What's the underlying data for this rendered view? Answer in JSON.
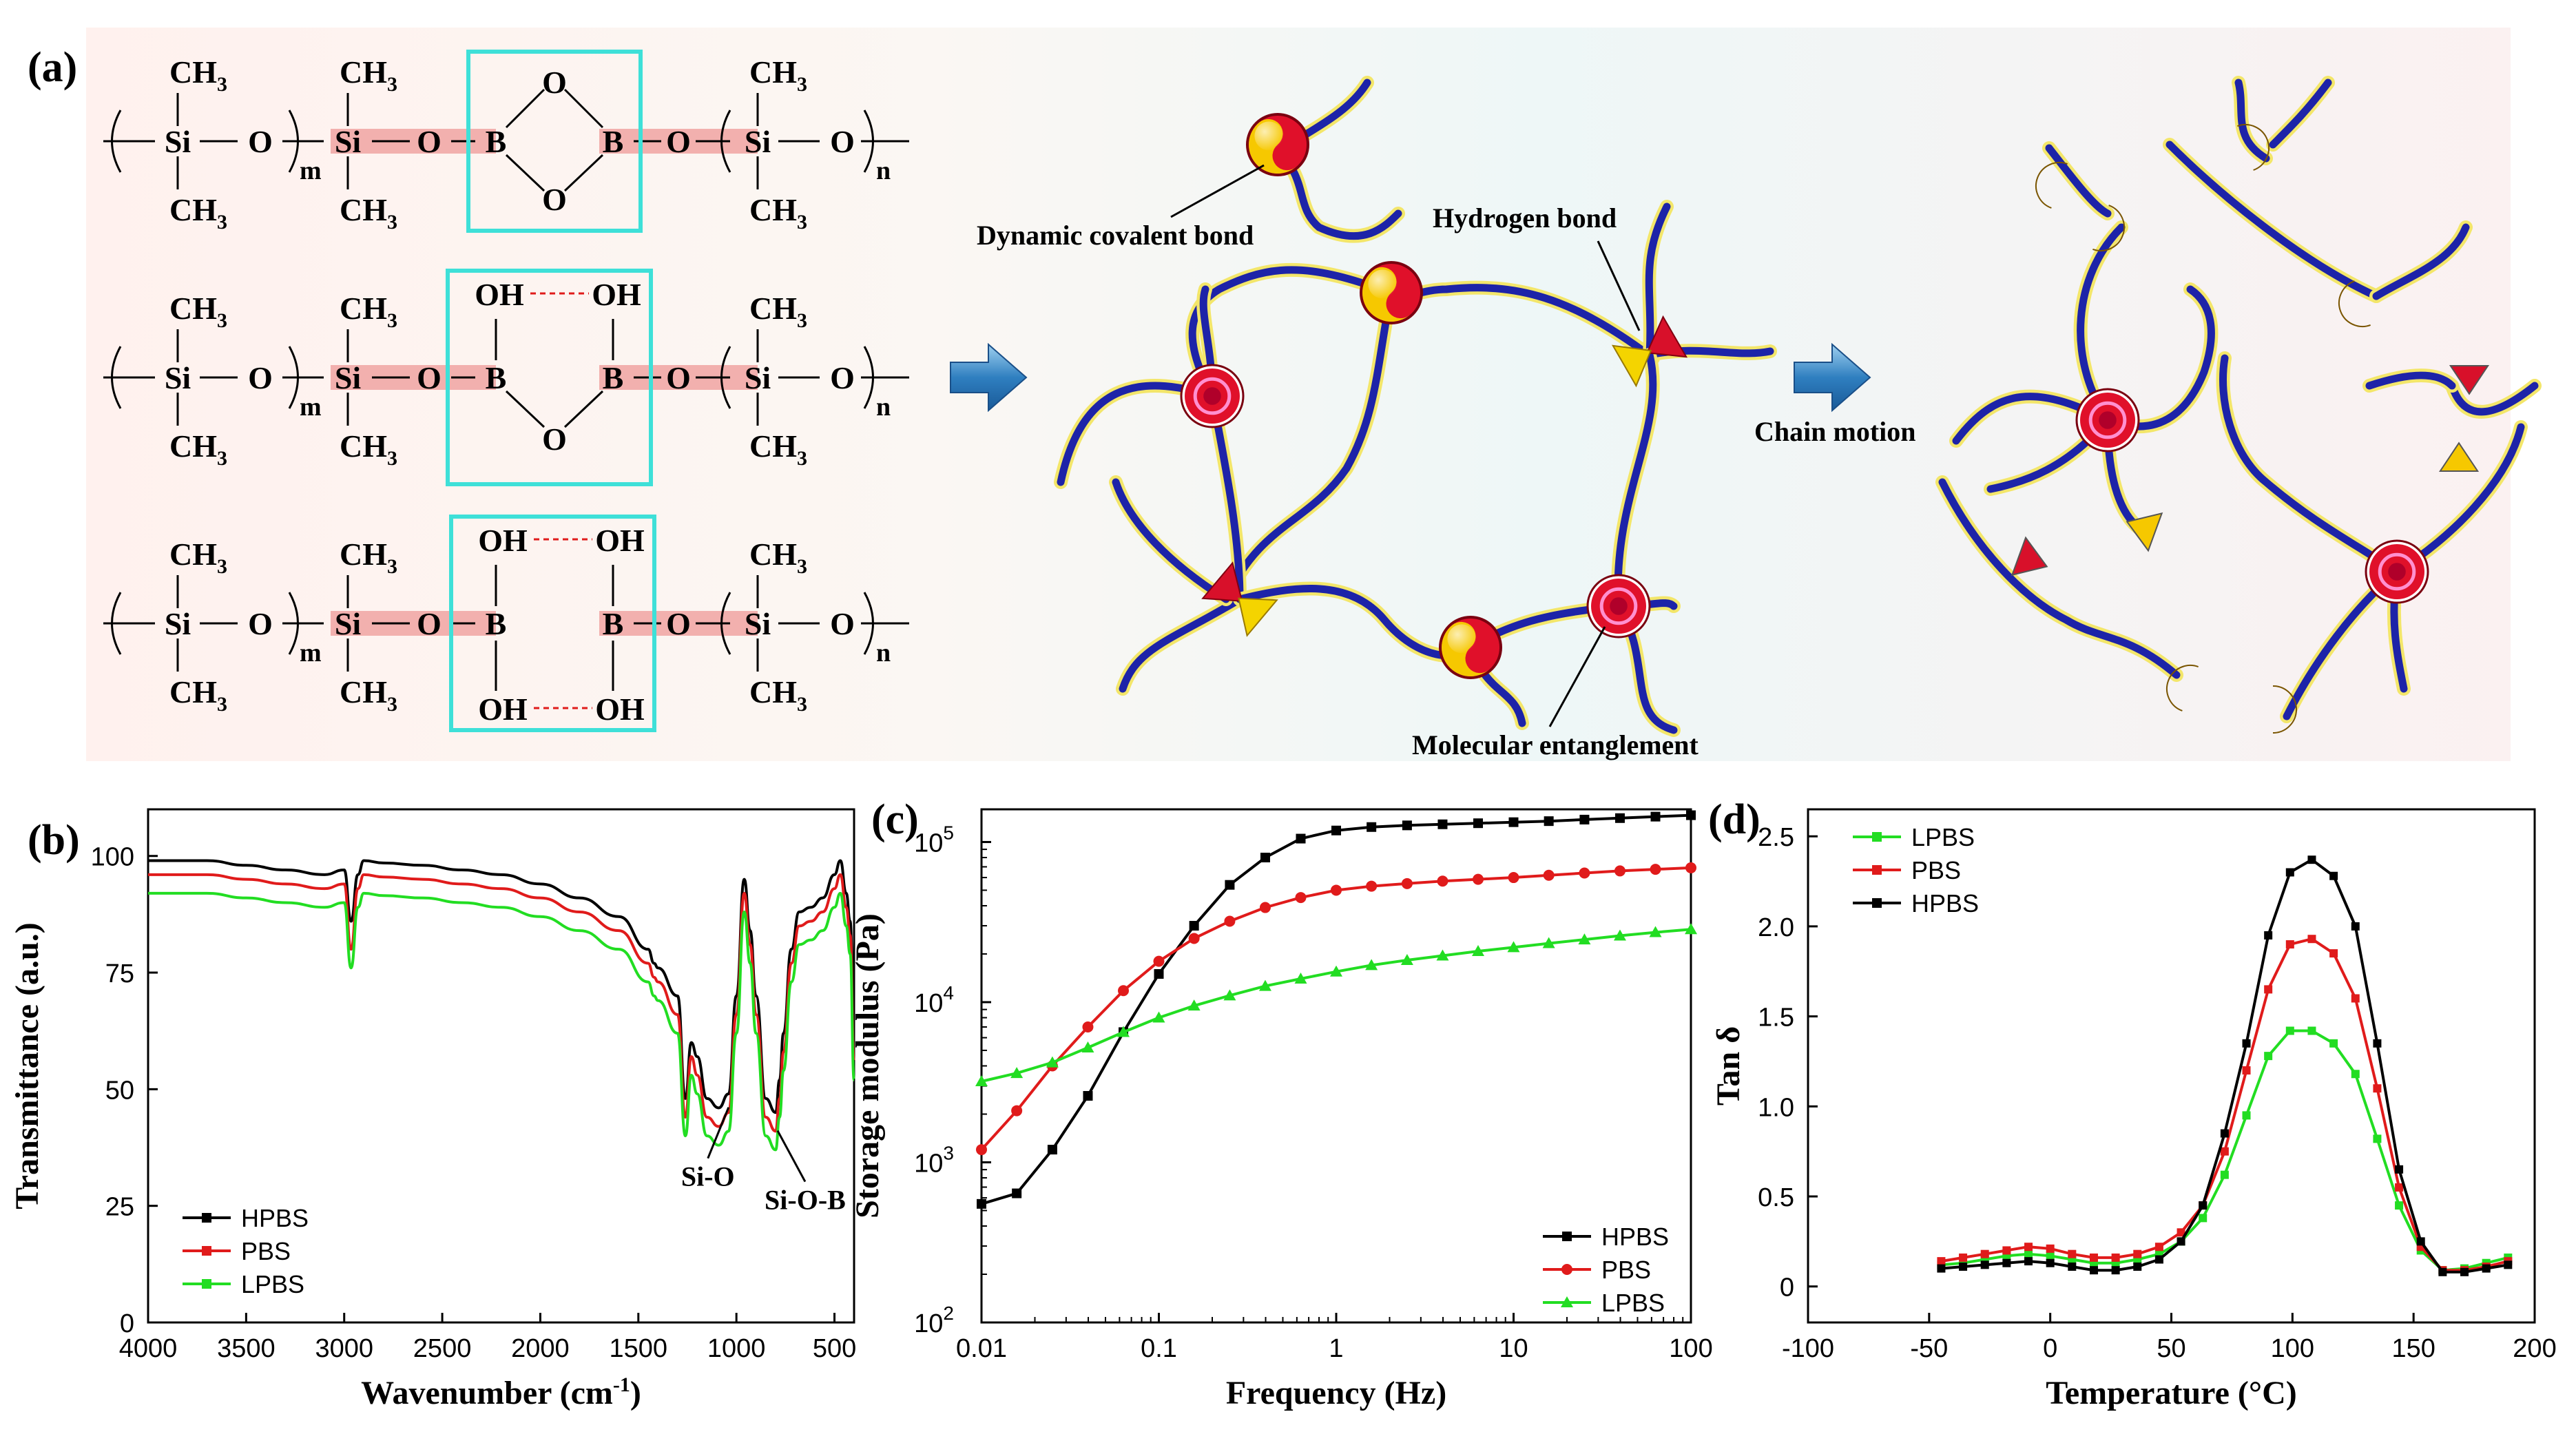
{
  "panel_labels": {
    "a": "(a)",
    "b": "(b)",
    "c": "(c)",
    "d": "(d)"
  },
  "structures": [
    {
      "type": "cyclic",
      "boron_top": "O",
      "boron_bottom": "O"
    },
    {
      "type": "partial",
      "left_top": "OH",
      "right_top": "OH",
      "bottom": "O"
    },
    {
      "type": "open",
      "left_top": "OH",
      "right_top": "OH",
      "left_bottom": "OH",
      "right_bottom": "OH"
    }
  ],
  "chem": {
    "ch3": "CH",
    "ch3_sub": "3",
    "si": "Si",
    "o": "O",
    "b": "B",
    "m": "m",
    "n": "n"
  },
  "network_labels": {
    "dynamic_covalent_bond": "Dynamic covalent bond",
    "hydrogen_bond": "Hydrogen bond",
    "molecular_entanglement": "Molecular entanglement",
    "chain_motion": "Chain motion"
  },
  "colors": {
    "chain": "#1d23a8",
    "chain_glow": "#f3e66a",
    "node_red": "#e0102a",
    "node_yellow": "#f6c800",
    "entangle_ring": "#c8107a",
    "box": "#3ee0d8",
    "bond_band": "#f2b0ae",
    "arrow": "#2f7fc0",
    "hpbs": "#000000",
    "pbs": "#e01b1b",
    "lpbs": "#22dd22"
  },
  "chart_data": [
    {
      "id": "b",
      "type": "line",
      "title": "",
      "xlabel": "Wavenumber (cm-1)",
      "xlabel_main": "Wavenumber (cm",
      "xlabel_sup": "-1",
      "xlabel_end": ")",
      "ylabel": "Transmittance (a.u.)",
      "xlim": [
        4000,
        400
      ],
      "ylim": [
        0,
        110
      ],
      "xticks": [
        4000,
        3500,
        3000,
        2500,
        2000,
        1500,
        1000,
        500
      ],
      "yticks": [
        0,
        25,
        50,
        75,
        100
      ],
      "legend_position": "bottom-left",
      "annotations": [
        {
          "text": "Si-O",
          "x": 1040,
          "y": 47
        },
        {
          "text": "Si-O-B",
          "x": 790,
          "y": 42
        }
      ],
      "x": [
        4000,
        3800,
        3700,
        3500,
        3300,
        3100,
        3000,
        2965,
        2930,
        2900,
        2800,
        2600,
        2400,
        2200,
        2000,
        1800,
        1600,
        1450,
        1420,
        1400,
        1300,
        1260,
        1230,
        1200,
        1150,
        1090,
        1040,
        1000,
        960,
        930,
        900,
        850,
        800,
        780,
        760,
        720,
        680,
        620,
        560,
        500,
        470,
        440,
        420,
        400
      ],
      "series": [
        {
          "name": "HPBS",
          "values": [
            99,
            99,
            99,
            98,
            97,
            96,
            97,
            86,
            96,
            99,
            98.5,
            98,
            97,
            96,
            94,
            91,
            87,
            80,
            77,
            76,
            70,
            48,
            60,
            57,
            48,
            46,
            49,
            70,
            95,
            84,
            70,
            48,
            45,
            52,
            62,
            80,
            88,
            89,
            91,
            96,
            99,
            92,
            86,
            60
          ]
        },
        {
          "name": "PBS",
          "values": [
            96,
            96,
            96,
            95,
            94,
            93,
            94,
            80,
            93,
            96,
            95.5,
            95,
            94,
            93,
            91,
            88,
            84,
            77,
            74,
            73,
            66,
            44,
            57,
            53,
            44,
            42,
            45,
            66,
            92,
            81,
            66,
            44,
            41,
            48,
            58,
            77,
            85,
            86,
            88,
            93,
            96,
            89,
            83,
            56
          ]
        },
        {
          "name": "LPBS",
          "values": [
            92,
            92,
            92,
            91,
            90,
            89,
            90,
            76,
            89,
            92,
            91.5,
            91,
            90,
            89,
            87,
            84,
            80,
            73,
            70,
            69,
            62,
            40,
            53,
            49,
            40,
            38,
            41,
            62,
            88,
            77,
            62,
            40,
            37,
            44,
            54,
            73,
            81,
            82,
            84,
            89,
            92,
            85,
            79,
            52
          ]
        }
      ]
    },
    {
      "id": "c",
      "type": "line",
      "title": "",
      "xlabel": "Frequency (Hz)",
      "ylabel": "Storage modulus (Pa)",
      "x_scale": "log",
      "y_scale": "log",
      "xlim": [
        0.01,
        100
      ],
      "ylim": [
        100,
        160000
      ],
      "xticks": [
        0.01,
        0.1,
        1,
        10,
        100
      ],
      "xtick_labels": [
        "0.01",
        "0.1",
        "1",
        "10",
        "100"
      ],
      "yticks": [
        100,
        1000,
        10000,
        100000
      ],
      "ytick_labels": [
        {
          "base": "10",
          "exp": "2"
        },
        {
          "base": "10",
          "exp": "3"
        },
        {
          "base": "10",
          "exp": "4"
        },
        {
          "base": "10",
          "exp": "5"
        }
      ],
      "legend_position": "bottom-right",
      "x": [
        0.01,
        0.0158,
        0.0251,
        0.0398,
        0.0631,
        0.1,
        0.158,
        0.251,
        0.398,
        0.631,
        1,
        1.58,
        2.51,
        3.98,
        6.31,
        10,
        15.8,
        25.1,
        39.8,
        63.1,
        100
      ],
      "series": [
        {
          "name": "HPBS",
          "values": [
            550,
            640,
            1200,
            2600,
            6500,
            15000,
            30000,
            54000,
            80000,
            105000,
            118000,
            124000,
            127000,
            129000,
            131000,
            133000,
            135000,
            138000,
            141000,
            144000,
            147000
          ]
        },
        {
          "name": "PBS",
          "values": [
            1200,
            2100,
            4000,
            7000,
            11800,
            18000,
            25000,
            32000,
            39000,
            45000,
            50000,
            53000,
            55000,
            57000,
            58500,
            60000,
            62000,
            64000,
            66000,
            67500,
            69000
          ]
        },
        {
          "name": "LPBS",
          "values": [
            3200,
            3600,
            4200,
            5200,
            6500,
            8000,
            9500,
            11000,
            12600,
            14000,
            15500,
            17000,
            18300,
            19500,
            20800,
            22000,
            23300,
            24600,
            26000,
            27300,
            28500
          ]
        }
      ]
    },
    {
      "id": "d",
      "type": "line",
      "title": "",
      "xlabel": "Temperature (°C)",
      "ylabel": "Tan δ",
      "xlim": [
        -100,
        200
      ],
      "ylim": [
        -0.2,
        2.65
      ],
      "xticks": [
        -100,
        -50,
        0,
        50,
        100,
        150,
        200
      ],
      "yticks": [
        0,
        0.5,
        1.0,
        1.5,
        2.0,
        2.5
      ],
      "ytick_labels": [
        "0",
        "0.5",
        "1.0",
        "1.5",
        "2.0",
        "2.5"
      ],
      "legend_position": "top-left",
      "x": [
        -45,
        -36,
        -27,
        -18,
        -9,
        0,
        9,
        18,
        27,
        36,
        45,
        54,
        63,
        72,
        81,
        90,
        99,
        108,
        117,
        126,
        135,
        144,
        153,
        162,
        171,
        180,
        189
      ],
      "series": [
        {
          "name": "LPBS",
          "values": [
            0.12,
            0.13,
            0.15,
            0.17,
            0.18,
            0.17,
            0.15,
            0.13,
            0.13,
            0.15,
            0.18,
            0.25,
            0.38,
            0.62,
            0.95,
            1.28,
            1.42,
            1.42,
            1.35,
            1.18,
            0.82,
            0.45,
            0.2,
            0.09,
            0.1,
            0.13,
            0.16
          ]
        },
        {
          "name": "PBS",
          "values": [
            0.14,
            0.16,
            0.18,
            0.2,
            0.22,
            0.21,
            0.18,
            0.16,
            0.16,
            0.18,
            0.22,
            0.3,
            0.45,
            0.75,
            1.2,
            1.65,
            1.9,
            1.93,
            1.85,
            1.6,
            1.1,
            0.55,
            0.22,
            0.09,
            0.09,
            0.11,
            0.14
          ]
        },
        {
          "name": "HPBS",
          "values": [
            0.1,
            0.11,
            0.12,
            0.13,
            0.14,
            0.13,
            0.11,
            0.09,
            0.09,
            0.11,
            0.15,
            0.25,
            0.45,
            0.85,
            1.35,
            1.95,
            2.3,
            2.37,
            2.28,
            2.0,
            1.35,
            0.65,
            0.25,
            0.08,
            0.08,
            0.1,
            0.12
          ]
        }
      ]
    }
  ]
}
